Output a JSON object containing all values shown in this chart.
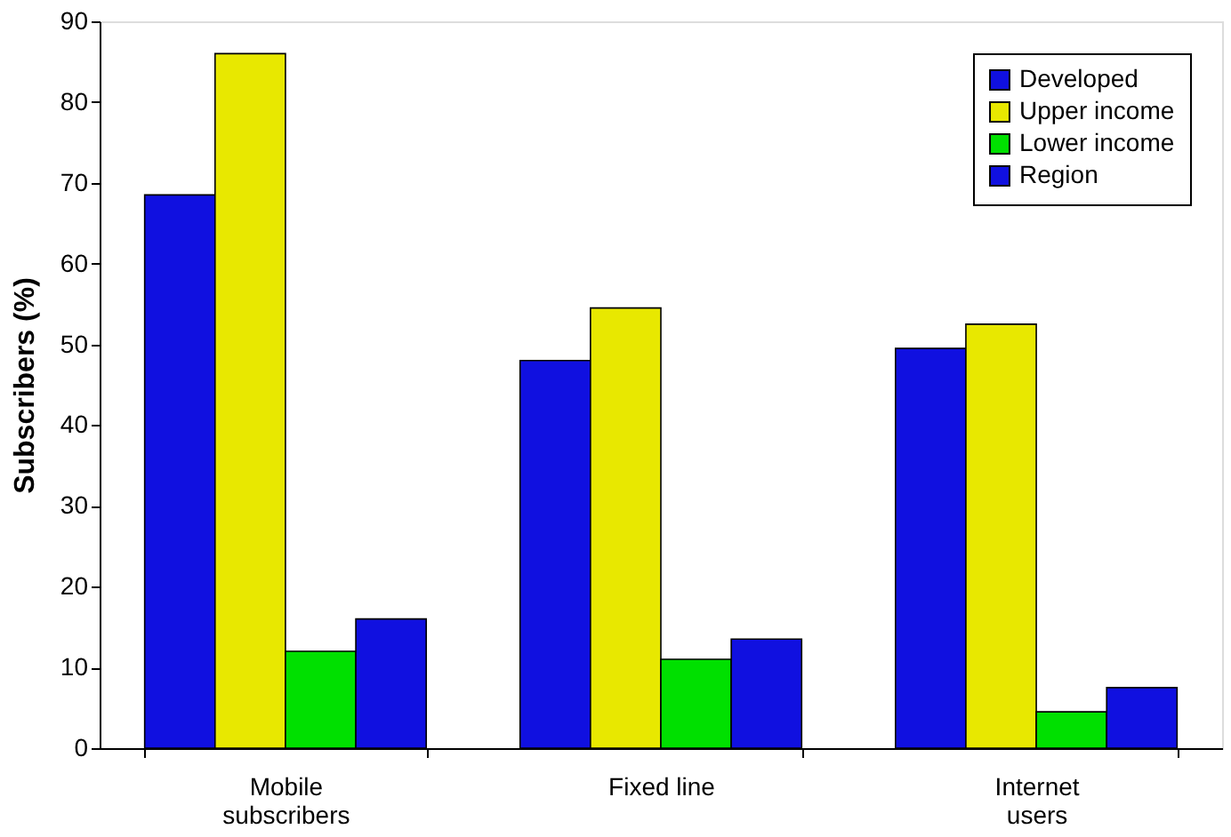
{
  "chart_data": {
    "type": "bar",
    "ylabel": "Subscribers (%)",
    "categories": [
      "Mobile subscribers",
      "Fixed line",
      "Internet users"
    ],
    "series": [
      {
        "name": "Developed",
        "color": "#1010e0",
        "values": [
          68.5,
          48,
          49.5
        ]
      },
      {
        "name": "Upper income",
        "color": "#e8e800",
        "values": [
          86,
          54.5,
          52.5
        ]
      },
      {
        "name": "Lower income",
        "color": "#00e000",
        "values": [
          12,
          11,
          4.5
        ]
      },
      {
        "name": "Region",
        "color": "#1010e0",
        "values": [
          16,
          13.5,
          7.5
        ]
      }
    ],
    "ylim": [
      0,
      90
    ],
    "yticks": [
      0,
      10,
      20,
      30,
      40,
      50,
      60,
      70,
      80,
      90
    ],
    "grid": false,
    "legend": "top right"
  }
}
